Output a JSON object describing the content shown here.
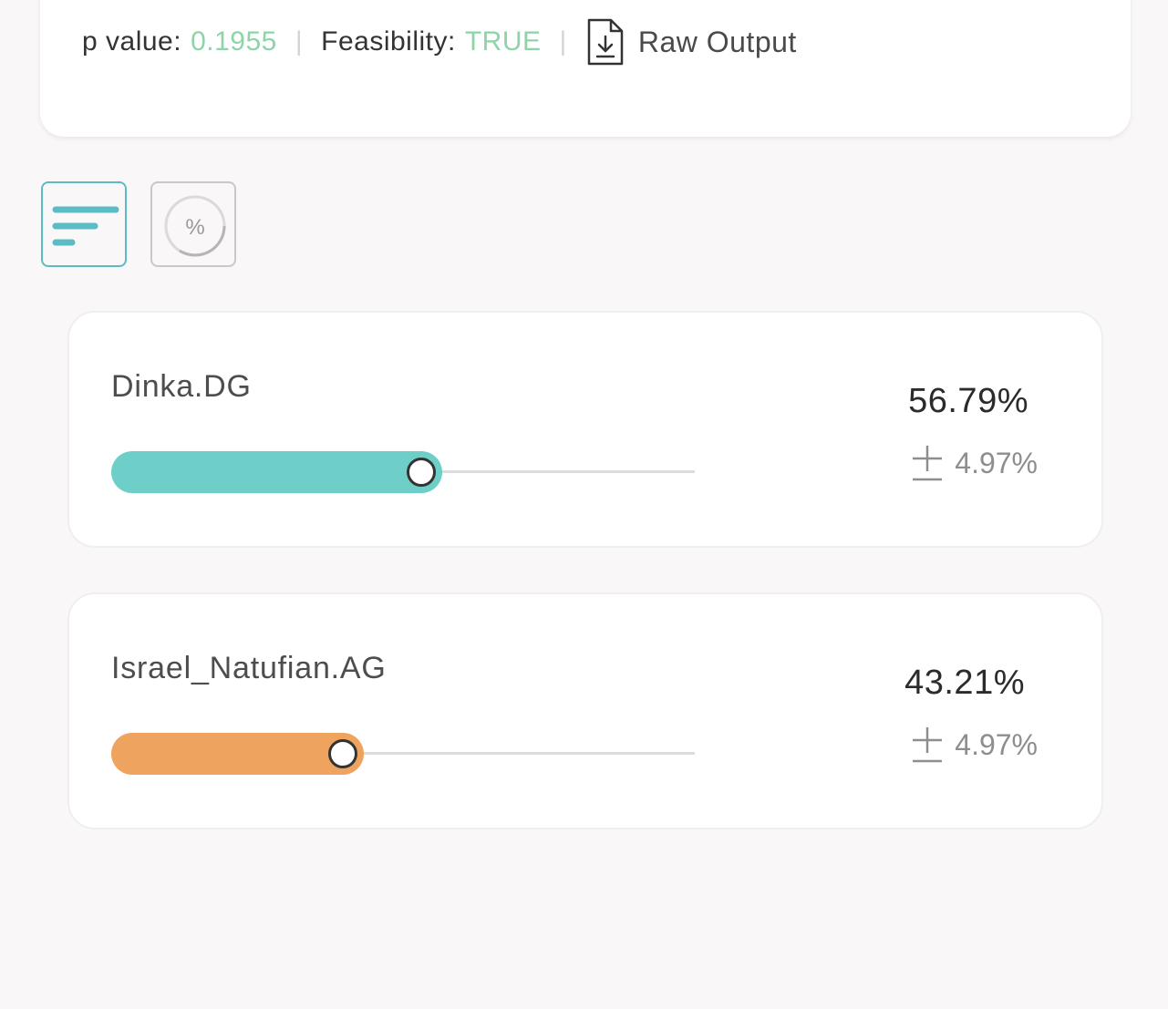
{
  "summary": {
    "p_value_label": "p value:",
    "p_value": "0.1955",
    "feasibility_label": "Feasibility:",
    "feasibility": "TRUE",
    "separator": "|",
    "raw_output_label": "Raw Output",
    "value_color": "#8fd3a8"
  },
  "view_toggle": {
    "bars_icon": "bar-chart-icon",
    "pie_icon": "percent-circle-icon",
    "pie_symbol": "%",
    "active": "bars"
  },
  "populations": [
    {
      "name": "Dinka.DG",
      "percent": "56.79%",
      "fraction": 0.5679,
      "error": "4.97%",
      "color": "#6ecfc8"
    },
    {
      "name": "Israel_Natufian.AG",
      "percent": "43.21%",
      "fraction": 0.4321,
      "error": "4.97%",
      "color": "#eea35e"
    }
  ]
}
